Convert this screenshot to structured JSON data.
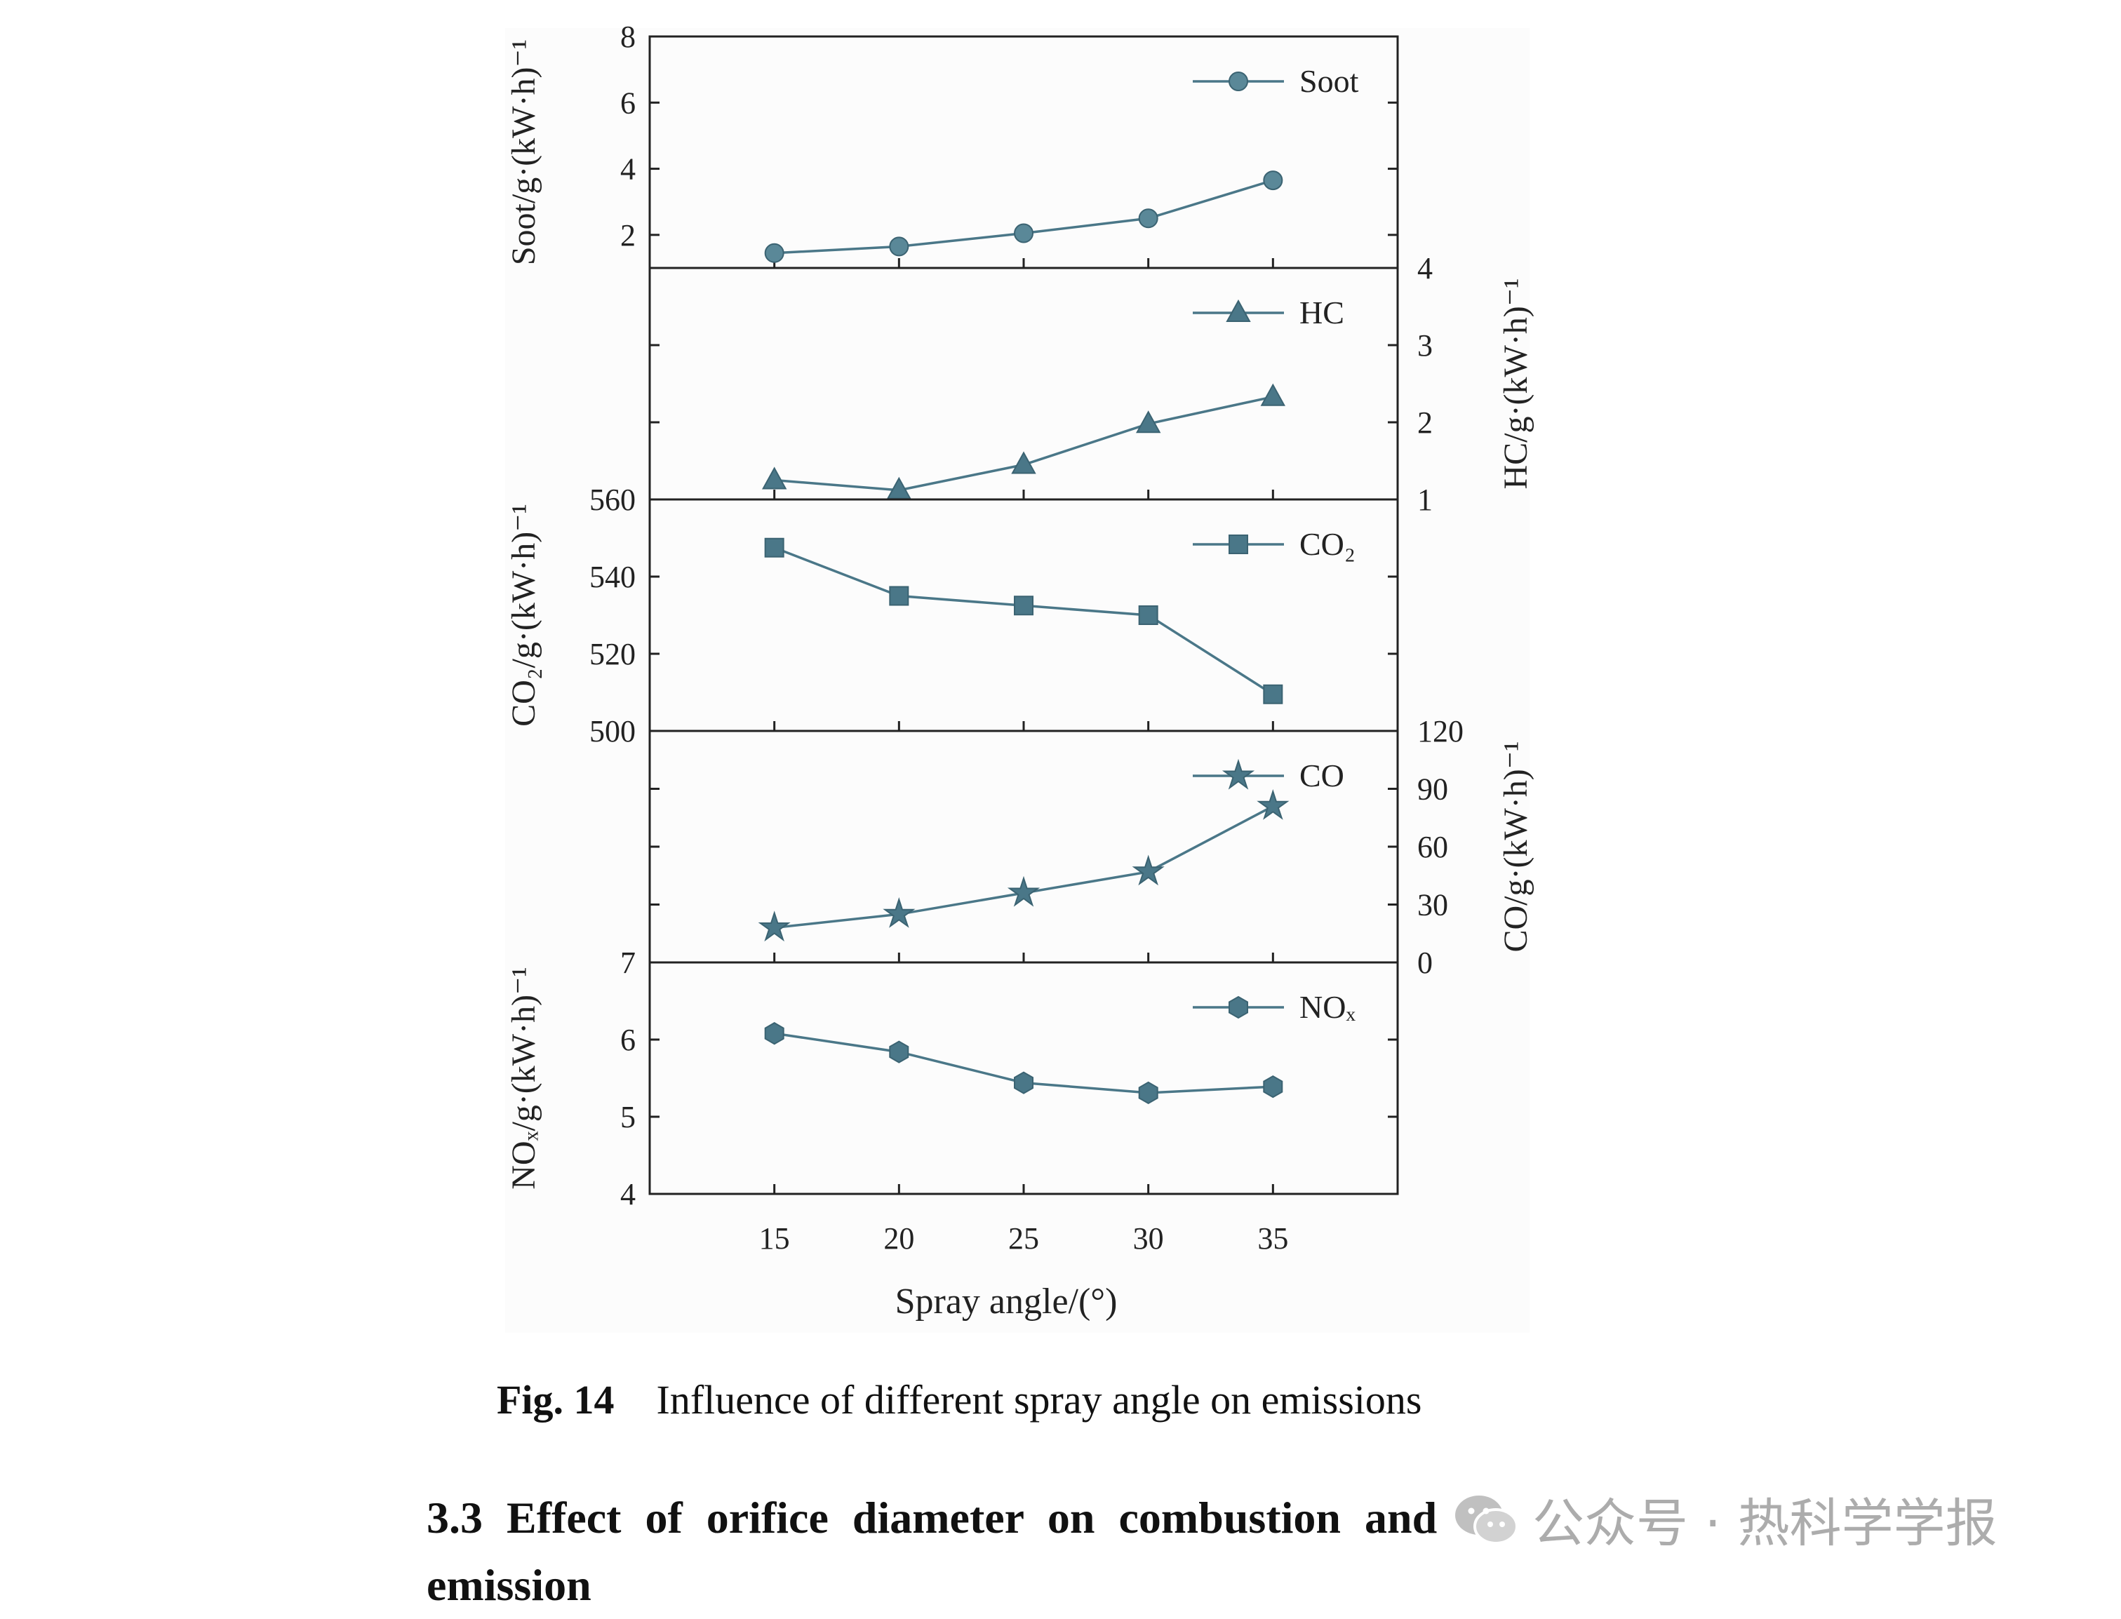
{
  "chart_data": {
    "type": "line",
    "xlabel": "Spray angle/(°)",
    "x": [
      15,
      20,
      25,
      30,
      35
    ],
    "xlim": [
      10,
      40
    ],
    "xticks": [
      "15",
      "20",
      "25",
      "30",
      "35"
    ],
    "panels": [
      {
        "name": "Soot",
        "marker": "circle",
        "axis_side": "left",
        "ylabel": "Soot/g·(kW·h)⁻¹",
        "ylim": [
          1,
          8
        ],
        "yticks": [
          "2",
          "4",
          "6",
          "8"
        ],
        "values": [
          1.45,
          1.65,
          2.05,
          2.5,
          3.65
        ]
      },
      {
        "name": "HC",
        "marker": "triangle",
        "axis_side": "right",
        "ylabel": "HC/g·(kW·h)⁻¹",
        "ylim": [
          1,
          4
        ],
        "yticks": [
          "1",
          "2",
          "3",
          "4"
        ],
        "values": [
          1.25,
          1.12,
          1.45,
          1.98,
          2.33
        ]
      },
      {
        "name": "CO₂",
        "marker": "square",
        "axis_side": "left",
        "ylabel": "CO₂/g·(kW·h)⁻¹",
        "ylim": [
          500,
          560
        ],
        "yticks": [
          "500",
          "520",
          "540",
          "560"
        ],
        "values": [
          547.5,
          535,
          532.5,
          530,
          509.5
        ]
      },
      {
        "name": "CO",
        "marker": "star",
        "axis_side": "right",
        "ylabel": "CO/g·(kW·h)⁻¹",
        "ylim": [
          0,
          120
        ],
        "yticks": [
          "0",
          "30",
          "60",
          "90",
          "120"
        ],
        "values": [
          18,
          25,
          36,
          47,
          81
        ]
      },
      {
        "name": "NOₓ",
        "marker": "hexagon",
        "axis_side": "left",
        "ylabel": "NOₓ/g·(kW·h)⁻¹",
        "ylim": [
          4,
          7
        ],
        "yticks": [
          "4",
          "5",
          "6",
          "7"
        ],
        "values": [
          6.08,
          5.84,
          5.44,
          5.31,
          5.39
        ]
      }
    ],
    "grid": false,
    "legend": "top-right of each panel",
    "colors": {
      "series": "#4a7788",
      "axis": "#222222"
    }
  },
  "caption": {
    "label": "Fig. 14",
    "text": "Influence of different spray angle on emissions"
  },
  "heading": "3.3 Effect of orifice diameter on combustion and emission",
  "watermark": {
    "text": "公众号 · 热科学学报",
    "icon": "wechat-icon"
  }
}
